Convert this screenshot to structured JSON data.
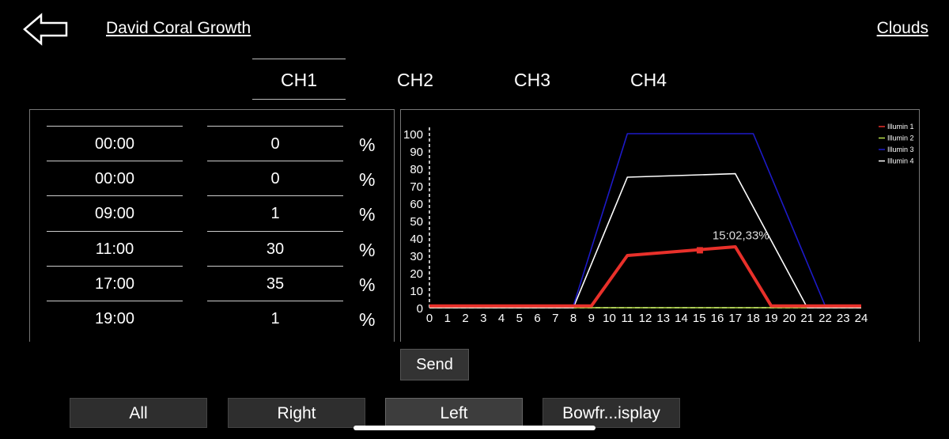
{
  "header": {
    "back_icon": "left-arrow-icon",
    "title": "David Coral Growth",
    "preset": "Clouds"
  },
  "tabs": [
    {
      "label": "CH1",
      "active": true
    },
    {
      "label": "CH2",
      "active": false
    },
    {
      "label": "CH3",
      "active": false
    },
    {
      "label": "CH4",
      "active": false
    }
  ],
  "schedule": {
    "unit": "%",
    "rows": [
      {
        "time": "00:00",
        "value": "0"
      },
      {
        "time": "00:00",
        "value": "0"
      },
      {
        "time": "09:00",
        "value": "1"
      },
      {
        "time": "11:00",
        "value": "30"
      },
      {
        "time": "17:00",
        "value": "35"
      },
      {
        "time": "19:00",
        "value": "1"
      }
    ]
  },
  "chart_data": {
    "type": "line",
    "x": [
      0,
      24
    ],
    "xticks": [
      0,
      1,
      2,
      3,
      4,
      5,
      6,
      7,
      8,
      9,
      10,
      11,
      12,
      13,
      14,
      15,
      16,
      17,
      18,
      19,
      20,
      21,
      22,
      23,
      24
    ],
    "xtick_labels": [
      "0",
      "1",
      "2",
      "3",
      "4",
      "5",
      "6",
      "7",
      "8",
      "9",
      "10",
      "11",
      "12",
      "13",
      "14",
      "15",
      "16",
      "17",
      "18",
      "19",
      "20",
      "21",
      "22",
      "23",
      "24"
    ],
    "yticks": [
      0,
      10,
      20,
      30,
      40,
      50,
      60,
      70,
      80,
      90,
      100
    ],
    "ytick_labels": [
      "0",
      "10",
      "20",
      "30",
      "40",
      "50",
      "60",
      "70",
      "80",
      "90",
      "100"
    ],
    "xlim": [
      0,
      24
    ],
    "ylim": [
      0,
      100
    ],
    "legend_position": "top-right",
    "series": [
      {
        "name": "Illumin 1",
        "color": "#e8302a",
        "points": [
          [
            0,
            1
          ],
          [
            9,
            1
          ],
          [
            11,
            30
          ],
          [
            17,
            35
          ],
          [
            19,
            1
          ],
          [
            24,
            1
          ]
        ]
      },
      {
        "name": "Illumin 2",
        "color": "#b8e04a",
        "points": [
          [
            0,
            0
          ],
          [
            24,
            0
          ]
        ]
      },
      {
        "name": "Illumin 3",
        "color": "#1d1ac8",
        "points": [
          [
            0,
            1
          ],
          [
            8,
            1
          ],
          [
            11,
            100
          ],
          [
            18,
            100
          ],
          [
            22,
            1
          ],
          [
            24,
            1
          ]
        ]
      },
      {
        "name": "Illumin 4",
        "color": "#ffffff",
        "points": [
          [
            0,
            0
          ],
          [
            8,
            0
          ],
          [
            11,
            75
          ],
          [
            17,
            77
          ],
          [
            21,
            0
          ],
          [
            24,
            0
          ]
        ]
      }
    ],
    "marker": {
      "x": 15.03,
      "y": 33,
      "label": "15:02,33%"
    }
  },
  "actions": {
    "send": "Send"
  },
  "groups": [
    {
      "label": "All",
      "active": false
    },
    {
      "label": "Right",
      "active": false
    },
    {
      "label": "Left",
      "active": true
    },
    {
      "label": "Bowfr...isplay",
      "active": false
    }
  ]
}
